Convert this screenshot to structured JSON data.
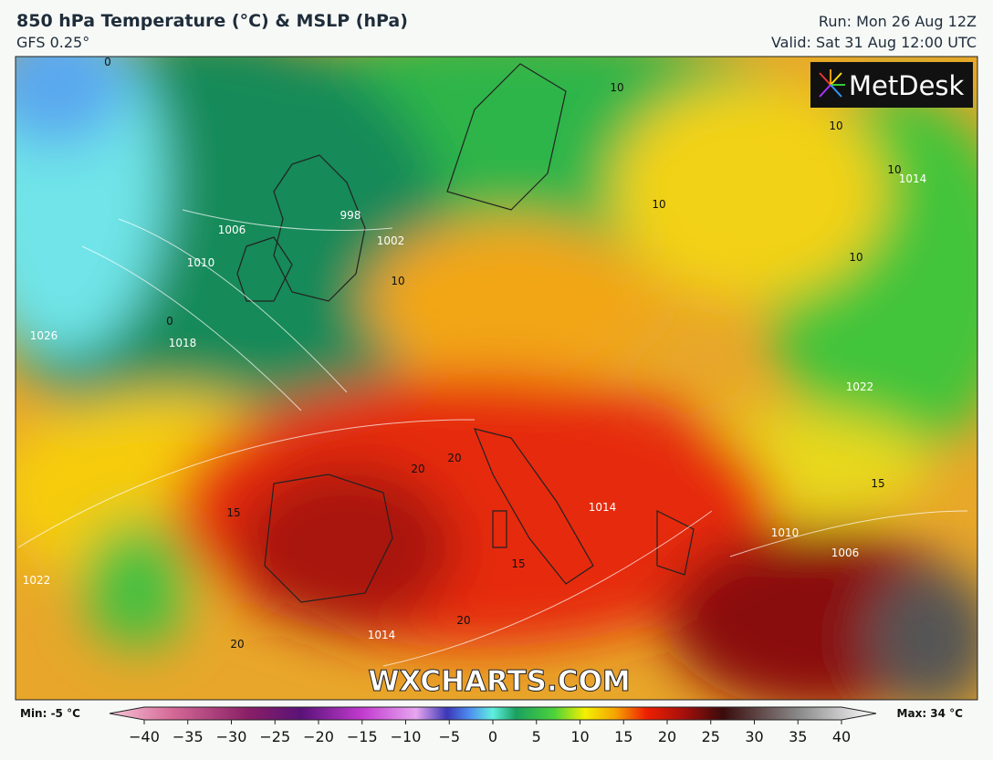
{
  "header": {
    "title": "850 hPa Temperature (°C) & MSLP (hPa)",
    "subtitle": "GFS 0.25°",
    "run": "Run: Mon 26 Aug 12Z",
    "valid": "Valid: Sat 31 Aug 12:00 UTC"
  },
  "logo": "MetDesk",
  "watermark": "WXCHARTS.COM",
  "map_labels": [
    "1006",
    "1010",
    "1014",
    "1018",
    "1026",
    "1002",
    "998",
    "1014",
    "1022",
    "1022",
    "1014",
    "1010",
    "1006",
    "10",
    "10",
    "10",
    "10",
    "10",
    "10",
    "15",
    "15",
    "15",
    "20",
    "20",
    "20",
    "20",
    "0",
    "0"
  ],
  "legend": {
    "min": "Min: -5 °C",
    "max": "Max: 34 °C",
    "ticks": [
      {
        "value": -40,
        "label": "−40"
      },
      {
        "value": -35,
        "label": "−35"
      },
      {
        "value": -30,
        "label": "−30"
      },
      {
        "value": -25,
        "label": "−25"
      },
      {
        "value": -20,
        "label": "−20"
      },
      {
        "value": -15,
        "label": "−15"
      },
      {
        "value": -10,
        "label": "−10"
      },
      {
        "value": -5,
        "label": "−5"
      },
      0,
      5,
      10,
      15,
      20,
      25,
      30,
      35,
      40
    ]
  }
}
